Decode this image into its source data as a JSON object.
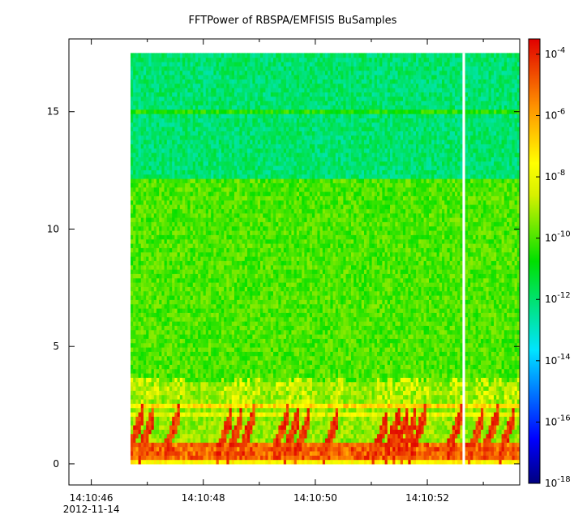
{
  "chart_data": {
    "type": "heatmap",
    "title": "FFTPower of RBSPA/EMFISIS  BuSamples",
    "xlabel": "",
    "ylabel": "",
    "x_ticks": [
      {
        "value": 0,
        "label": "14:10:46",
        "sublabel": "2012-11-14"
      },
      {
        "value": 2,
        "label": "14:10:48",
        "sublabel": ""
      },
      {
        "value": 4,
        "label": "14:10:50",
        "sublabel": ""
      },
      {
        "value": 6,
        "label": "14:10:52",
        "sublabel": ""
      }
    ],
    "x_minor_ticks": [
      1,
      3,
      5,
      7
    ],
    "xlim": [
      -0.4,
      7.65
    ],
    "ylim": [
      -0.9,
      18.1
    ],
    "y_ticks": [
      0,
      5,
      10,
      15
    ],
    "data_extent": {
      "t_start": 0.7,
      "t_end": 7.65,
      "f_min": 0,
      "f_max": 17.5
    },
    "data_gap": {
      "t": 6.65
    },
    "colorbar": {
      "scale": "log",
      "min_exponent": -18,
      "max_exponent": -3.5,
      "tick_exponents": [
        -4,
        -6,
        -8,
        -10,
        -12,
        -14,
        -16,
        -18
      ],
      "tick_base": "10"
    },
    "features": {
      "upper_band": {
        "f_range": [
          12.2,
          17.5
        ],
        "level_exponent": -12
      },
      "mid_band": {
        "f_range": [
          3.5,
          12.2
        ],
        "level_exponent": -10
      },
      "line_15": {
        "f": 15,
        "level_exponent": -10.5
      },
      "lower_bands": [
        {
          "f": 2.45,
          "level_exponent": -7
        },
        {
          "f": 2.1,
          "level_exponent": -8
        },
        {
          "f": 0.6,
          "level_exponent": -5
        }
      ],
      "chorus_bursts_t": [
        0.85,
        1.05,
        1.5,
        2.45,
        2.65,
        2.85,
        3.45,
        3.65,
        3.85,
        4.35,
        5.25,
        5.45,
        5.6,
        5.75,
        5.9,
        6.55,
        6.95,
        7.2,
        7.5
      ]
    }
  }
}
